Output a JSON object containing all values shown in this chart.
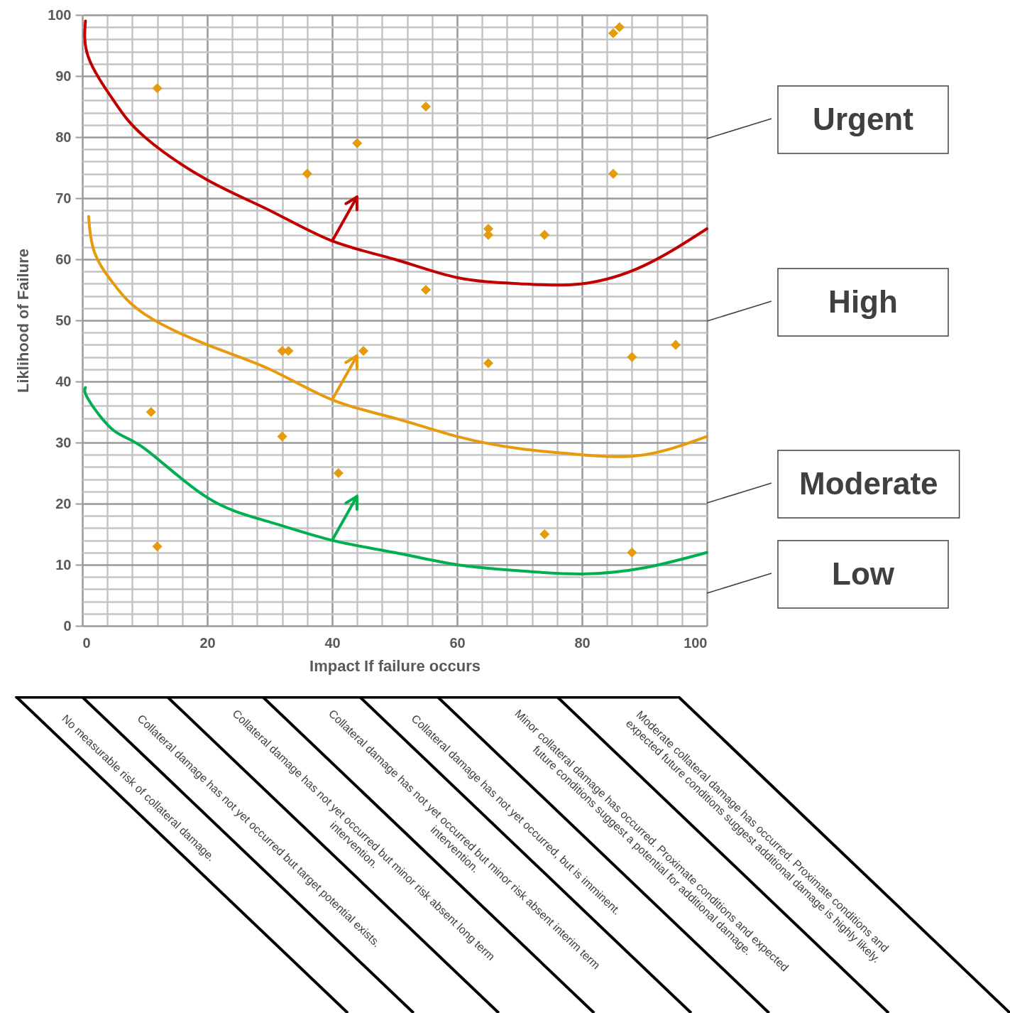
{
  "chart_data": {
    "type": "scatter",
    "xlabel": "Impact If failure occurs",
    "ylabel": "Liklihood of Failure",
    "xlim": [
      0,
      100
    ],
    "ylim": [
      0,
      100
    ],
    "xticks": [
      0,
      {
        "value": 4,
        "label": null
      },
      {
        "value": 8,
        "label": null
      },
      {
        "value": 12,
        "label": null
      },
      {
        "value": 16,
        "label": null
      },
      20,
      {
        "value": 24,
        "label": null
      },
      {
        "value": 28,
        "label": null
      },
      {
        "value": 32,
        "label": null
      },
      {
        "value": 36,
        "label": null
      },
      40,
      {
        "value": 44,
        "label": null
      },
      {
        "value": 48,
        "label": null
      },
      {
        "value": 52,
        "label": null
      },
      {
        "value": 56,
        "label": null
      },
      60,
      {
        "value": 64,
        "label": null
      },
      {
        "value": 68,
        "label": null
      },
      {
        "value": 72,
        "label": null
      },
      {
        "value": 76,
        "label": null
      },
      80,
      {
        "value": 84,
        "label": null
      },
      {
        "value": 88,
        "label": null
      },
      {
        "value": 92,
        "label": null
      },
      {
        "value": 96,
        "label": null
      },
      100
    ],
    "yticks": [
      0,
      {
        "value": 2,
        "label": null
      },
      {
        "value": 4,
        "label": null
      },
      {
        "value": 6,
        "label": null
      },
      {
        "value": 8,
        "label": null
      },
      10,
      {
        "value": 12,
        "label": null
      },
      {
        "value": 14,
        "label": null
      },
      {
        "value": 16,
        "label": null
      },
      {
        "value": 18,
        "label": null
      },
      20,
      {
        "value": 22,
        "label": null
      },
      {
        "value": 24,
        "label": null
      },
      {
        "value": 26,
        "label": null
      },
      {
        "value": 28,
        "label": null
      },
      30,
      {
        "value": 32,
        "label": null
      },
      {
        "value": 34,
        "label": null
      },
      {
        "value": 36,
        "label": null
      },
      {
        "value": 38,
        "label": null
      },
      40,
      {
        "value": 42,
        "label": null
      },
      {
        "value": 44,
        "label": null
      },
      {
        "value": 46,
        "label": null
      },
      {
        "value": 48,
        "label": null
      },
      50,
      {
        "value": 52,
        "label": null
      },
      {
        "value": 54,
        "label": null
      },
      {
        "value": 56,
        "label": null
      },
      {
        "value": 58,
        "label": null
      },
      60,
      {
        "value": 62,
        "label": null
      },
      {
        "value": 64,
        "label": null
      },
      {
        "value": 66,
        "label": null
      },
      {
        "value": 68,
        "label": null
      },
      70,
      {
        "value": 72,
        "label": null
      },
      {
        "value": 74,
        "label": null
      },
      {
        "value": 76,
        "label": null
      },
      {
        "value": 78,
        "label": null
      },
      80,
      {
        "value": 82,
        "label": null
      },
      {
        "value": 84,
        "label": null
      },
      {
        "value": 86,
        "label": null
      },
      {
        "value": 88,
        "label": null
      },
      90,
      {
        "value": 92,
        "label": null
      },
      {
        "value": 94,
        "label": null
      },
      {
        "value": 96,
        "label": null
      },
      {
        "value": 98,
        "label": null
      },
      100
    ],
    "grid": true,
    "marker": "diamond",
    "series": [
      {
        "color": "#e59b0e",
        "x": [
          12,
          55,
          44,
          36,
          85,
          85,
          86,
          65,
          65,
          74,
          55,
          32,
          33,
          45,
          65,
          88,
          95,
          11,
          32,
          41,
          12,
          74,
          88
        ],
        "values": [
          88,
          85,
          79,
          74,
          74,
          97,
          98,
          65,
          64,
          64,
          55,
          45,
          45,
          45,
          43,
          44,
          46,
          35,
          31,
          25,
          13,
          15,
          12
        ]
      },
      {
        "type": "line",
        "marker": "none",
        "color": "#c00000",
        "x": [
          0.5,
          1,
          5,
          10,
          20,
          30,
          40,
          50,
          60,
          70,
          80,
          90,
          100
        ],
        "values": [
          99,
          93,
          86,
          80,
          73,
          68,
          63,
          60,
          57,
          56,
          56,
          59,
          65
        ]
      },
      {
        "type": "line",
        "marker": "none",
        "color": "#e8990c",
        "x": [
          1,
          2,
          5,
          10,
          20,
          30,
          40,
          50,
          60,
          70,
          80,
          90,
          100
        ],
        "values": [
          67,
          61,
          56,
          51,
          46,
          42,
          37,
          34,
          31,
          29,
          28,
          28,
          31
        ]
      },
      {
        "type": "line",
        "marker": "none",
        "color": "#00b050",
        "x": [
          0.5,
          1,
          5,
          10,
          20,
          30,
          40,
          50,
          60,
          70,
          80,
          90,
          100
        ],
        "values": [
          39,
          37,
          32,
          29,
          21,
          17,
          14,
          12,
          10,
          9,
          8.5,
          9.5,
          12
        ]
      }
    ],
    "annotations": [
      "Urgent",
      "High",
      "Moderate",
      "Low",
      "No measurable risk of collateral damage.",
      "Collateral damage has not yet occurred but target potential exists.",
      "Collateral damage has not yet occurred but minor risk absent long term intervention.",
      "Collateral damage has not yet occurred but minor risk absent interim term intervention.",
      "Collateral damage has not yet occurred, but is imminent.",
      "Minor collateral damage has occurred. Proximate conditions and expected future conditions suggest a potential for additional damage.",
      "Moderate collateral damage has occurred. Proximate conditions and expected future conditions suggest additional damage is highly likely."
    ]
  }
}
